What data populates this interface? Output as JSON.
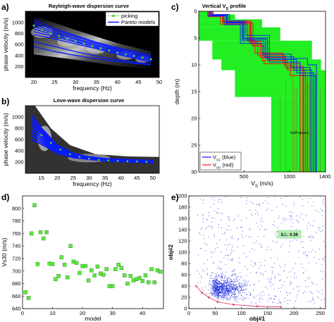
{
  "panel_labels": [
    "a)",
    "b)",
    "c)",
    "d)",
    "e)"
  ],
  "colors": {
    "pareto_blue": "#0a1aff",
    "picking_green": "#5bea3c",
    "profile_green": "#22ee22",
    "vsh_red": "#ee1a1a",
    "scatter_blue": "#2638e0",
    "si_box": "#b7f0b7"
  },
  "chart_data": [
    {
      "panel": "a",
      "type": "line",
      "title": "Rayleigh-wave dispersion curve",
      "xlabel": "frequency (Hz)",
      "ylabel": "phase velocity (m/s)",
      "xlim": [
        18,
        50
      ],
      "ylim": [
        0,
        1200
      ],
      "xticks": [
        20,
        25,
        30,
        35,
        40,
        45,
        50
      ],
      "yticks": [
        200,
        400,
        600,
        800,
        1000
      ],
      "legend": {
        "position": "top-right",
        "entries": [
          "picking",
          "Pareto models"
        ]
      },
      "picking": {
        "x": [
          20,
          22,
          24,
          26,
          28,
          30,
          32,
          34,
          36,
          38,
          40,
          42,
          44,
          46,
          48
        ],
        "y": [
          940,
          860,
          800,
          750,
          700,
          660,
          620,
          570,
          530,
          490,
          450,
          420,
          390,
          360,
          330
        ]
      },
      "pareto_models": [
        {
          "x": [
            20,
            25,
            30,
            35,
            40,
            45,
            48
          ],
          "y": [
            1050,
            890,
            760,
            640,
            540,
            460,
            410
          ]
        },
        {
          "x": [
            20,
            25,
            30,
            35,
            40,
            45,
            48
          ],
          "y": [
            1000,
            860,
            740,
            620,
            520,
            430,
            380
          ]
        },
        {
          "x": [
            20,
            25,
            30,
            35,
            40,
            45,
            48
          ],
          "y": [
            960,
            830,
            710,
            600,
            500,
            410,
            360
          ]
        },
        {
          "x": [
            20,
            25,
            30,
            35,
            40,
            45,
            48
          ],
          "y": [
            920,
            800,
            690,
            580,
            480,
            390,
            340
          ]
        },
        {
          "x": [
            20,
            25,
            30,
            35,
            40,
            45,
            48
          ],
          "y": [
            880,
            770,
            660,
            560,
            460,
            370,
            320
          ]
        },
        {
          "x": [
            20,
            25,
            30,
            35,
            40,
            45,
            48
          ],
          "y": [
            830,
            740,
            640,
            540,
            440,
            350,
            300
          ]
        },
        {
          "x": [
            20,
            25,
            30,
            35,
            40,
            45,
            48
          ],
          "y": [
            780,
            700,
            610,
            520,
            420,
            330,
            280
          ]
        },
        {
          "x": [
            20,
            25,
            30,
            35,
            40,
            45,
            48
          ],
          "y": [
            650,
            560,
            470,
            390,
            320,
            270,
            240
          ]
        },
        {
          "x": [
            20,
            25,
            30,
            35,
            40,
            45,
            48
          ],
          "y": [
            560,
            470,
            400,
            340,
            290,
            250,
            230
          ]
        }
      ]
    },
    {
      "panel": "b",
      "type": "line",
      "title": "Love-wave dispersion curve",
      "xlabel": "frequency (Hz)",
      "ylabel": "phase velocity (m/s)",
      "xlim": [
        10,
        52
      ],
      "ylim": [
        0,
        1200
      ],
      "xticks": [
        15,
        20,
        25,
        30,
        35,
        40,
        45,
        50
      ],
      "yticks": [
        200,
        400,
        600,
        800,
        1000
      ],
      "picking": {
        "x": [
          15,
          18,
          21,
          24,
          27,
          30,
          33,
          36,
          39,
          42,
          45,
          48
        ],
        "y": [
          680,
          540,
          420,
          340,
          290,
          260,
          240,
          230,
          220,
          215,
          210,
          205
        ]
      },
      "pareto_models": [
        {
          "x": [
            12,
            15,
            20,
            25,
            30,
            35,
            40,
            45,
            50
          ],
          "y": [
            1020,
            800,
            500,
            350,
            290,
            260,
            245,
            235,
            225
          ]
        },
        {
          "x": [
            12,
            15,
            20,
            25,
            30,
            35,
            40,
            45,
            50
          ],
          "y": [
            960,
            760,
            480,
            340,
            280,
            255,
            240,
            230,
            220
          ]
        },
        {
          "x": [
            12,
            15,
            20,
            25,
            30,
            35,
            40,
            45,
            50
          ],
          "y": [
            900,
            720,
            460,
            330,
            275,
            250,
            235,
            225,
            215
          ]
        },
        {
          "x": [
            12,
            15,
            20,
            25,
            30,
            35,
            40,
            45,
            50
          ],
          "y": [
            840,
            680,
            440,
            320,
            270,
            245,
            230,
            220,
            210
          ]
        },
        {
          "x": [
            12,
            15,
            20,
            25,
            30,
            35,
            40,
            45,
            50
          ],
          "y": [
            780,
            640,
            420,
            310,
            265,
            240,
            225,
            215,
            205
          ]
        },
        {
          "x": [
            12,
            15,
            20,
            25,
            30,
            35,
            40,
            45,
            50
          ],
          "y": [
            720,
            600,
            400,
            300,
            260,
            235,
            220,
            210,
            200
          ]
        },
        {
          "x": [
            12,
            15,
            20,
            25,
            30,
            35,
            40,
            45,
            50
          ],
          "y": [
            660,
            560,
            380,
            290,
            255,
            230,
            215,
            205,
            195
          ]
        },
        {
          "x": [
            12,
            15,
            20,
            25,
            30,
            35,
            40,
            45,
            50
          ],
          "y": [
            600,
            520,
            360,
            280,
            250,
            225,
            210,
            200,
            190
          ]
        }
      ]
    },
    {
      "panel": "c",
      "type": "line",
      "title": "Vertical V",
      "title_sub": "S",
      "title_tail": " profile",
      "xlabel": "V",
      "xlabel_sub": "S",
      "xlabel_tail": " (m/s)",
      "ylabel": "depth (m)",
      "xlim": [
        0,
        1400
      ],
      "ylim": [
        0,
        30
      ],
      "y_reversed": true,
      "xticks": [
        500,
        1000,
        1400
      ],
      "xtick_labels": [
        "500",
        "1000",
        "1400"
      ],
      "yticks": [
        0,
        5,
        10,
        15,
        20,
        25,
        30
      ],
      "annotation": "half-space",
      "legend": {
        "position": "bottom-left",
        "entries": [
          {
            "main": "V",
            "sub": "SV",
            "tail": " (blue)"
          },
          {
            "main": "V",
            "sub": "SH",
            "tail": " (red)"
          }
        ]
      },
      "search_space": [
        {
          "x0": 0,
          "x1": 120,
          "y0": 0,
          "y1": 0.6
        },
        {
          "x0": 0,
          "x1": 400,
          "y0": 0.6,
          "y1": 1.5
        },
        {
          "x0": 0,
          "x1": 700,
          "y0": 1.5,
          "y1": 3
        },
        {
          "x0": 0,
          "x1": 900,
          "y0": 3,
          "y1": 5.5
        },
        {
          "x0": 150,
          "x1": 1250,
          "y0": 5.5,
          "y1": 9
        },
        {
          "x0": 250,
          "x1": 1350,
          "y0": 9,
          "y1": 11
        },
        {
          "x0": 400,
          "x1": 1400,
          "y0": 11,
          "y1": 16
        },
        {
          "x0": 800,
          "x1": 1400,
          "y0": 16,
          "y1": 30
        }
      ],
      "vsv_models": [
        {
          "v": [
            120,
            300,
            480,
            720,
            1050,
            1250
          ],
          "d": [
            0.8,
            2.2,
            5.5,
            8.5,
            11,
            30
          ]
        },
        {
          "v": [
            140,
            320,
            500,
            760,
            1080,
            1270
          ],
          "d": [
            0.7,
            2.0,
            5.0,
            9.0,
            11.5,
            30
          ]
        },
        {
          "v": [
            100,
            280,
            460,
            700,
            1020,
            1230
          ],
          "d": [
            0.9,
            2.5,
            6.0,
            8.0,
            10.5,
            30
          ]
        },
        {
          "v": [
            160,
            340,
            520,
            780,
            1120,
            1290
          ],
          "d": [
            0.6,
            1.8,
            4.5,
            9.5,
            12,
            30
          ]
        },
        {
          "v": [
            130,
            310,
            490,
            740,
            1200,
            1300
          ],
          "d": [
            0.8,
            2.1,
            5.2,
            8.8,
            10,
            30
          ]
        }
      ],
      "vsh_models": [
        {
          "v": [
            130,
            260,
            560,
            650,
            950,
            1150
          ],
          "d": [
            0.8,
            2.0,
            5.8,
            8.2,
            10.2,
            30
          ]
        },
        {
          "v": [
            150,
            280,
            580,
            700,
            980,
            1180
          ],
          "d": [
            0.7,
            1.8,
            6.2,
            9.2,
            11.0,
            30
          ]
        },
        {
          "v": [
            110,
            240,
            540,
            620,
            930,
            1120
          ],
          "d": [
            1.0,
            2.4,
            5.4,
            7.8,
            9.8,
            30
          ]
        },
        {
          "v": [
            140,
            300,
            600,
            720,
            1010,
            1200
          ],
          "d": [
            0.6,
            2.2,
            6.5,
            9.8,
            12.0,
            30
          ]
        },
        {
          "v": [
            120,
            270,
            570,
            680,
            960,
            1160
          ],
          "d": [
            0.9,
            2.1,
            5.6,
            8.6,
            10.6,
            30
          ]
        }
      ]
    },
    {
      "panel": "d",
      "type": "scatter",
      "xlabel": "model",
      "ylabel": "Vs30 (m/s)",
      "xlim": [
        0,
        47
      ],
      "ylim": [
        640,
        820
      ],
      "xticks": [
        0,
        10,
        20,
        30,
        40
      ],
      "yticks": [
        640,
        660,
        680,
        700,
        720,
        740,
        760,
        780,
        800
      ],
      "x": [
        1,
        2,
        3,
        4,
        5,
        6,
        7,
        8,
        9,
        10,
        11,
        12,
        13,
        14,
        15,
        16,
        17,
        18,
        19,
        20,
        21,
        22,
        23,
        24,
        25,
        26,
        27,
        28,
        29,
        30,
        31,
        32,
        33,
        34,
        35,
        36,
        37,
        38,
        39,
        40,
        41,
        42,
        43,
        44,
        45,
        46
      ],
      "y": [
        666,
        657,
        760,
        805,
        711,
        762,
        752,
        762,
        712,
        711,
        687,
        692,
        722,
        710,
        690,
        740,
        715,
        713,
        697,
        708,
        708,
        685,
        701,
        693,
        707,
        696,
        694,
        703,
        676,
        676,
        703,
        710,
        705,
        693,
        680,
        692,
        685,
        687,
        689,
        684,
        693,
        682,
        703,
        682,
        701,
        699
      ]
    },
    {
      "panel": "e",
      "type": "scatter",
      "xlabel": "obj#1",
      "ylabel": "obj#2",
      "xlim": [
        0,
        260
      ],
      "ylim": [
        0,
        200
      ],
      "xticks": [
        0,
        50,
        100,
        150,
        200,
        250
      ],
      "yticks": [
        0,
        20,
        40,
        60,
        80,
        100,
        120,
        140,
        160,
        180,
        200
      ],
      "annotation": "S.I.: 0.39",
      "pareto_front": {
        "x": [
          14,
          25,
          38,
          55,
          85,
          130,
          175
        ],
        "y": [
          40,
          28,
          20,
          12,
          7,
          4,
          3
        ]
      },
      "point_cloud": {
        "x_range": [
          12,
          260
        ],
        "y_range": [
          0,
          200
        ],
        "density_peak": {
          "x": 45,
          "y": 30
        }
      }
    }
  ]
}
